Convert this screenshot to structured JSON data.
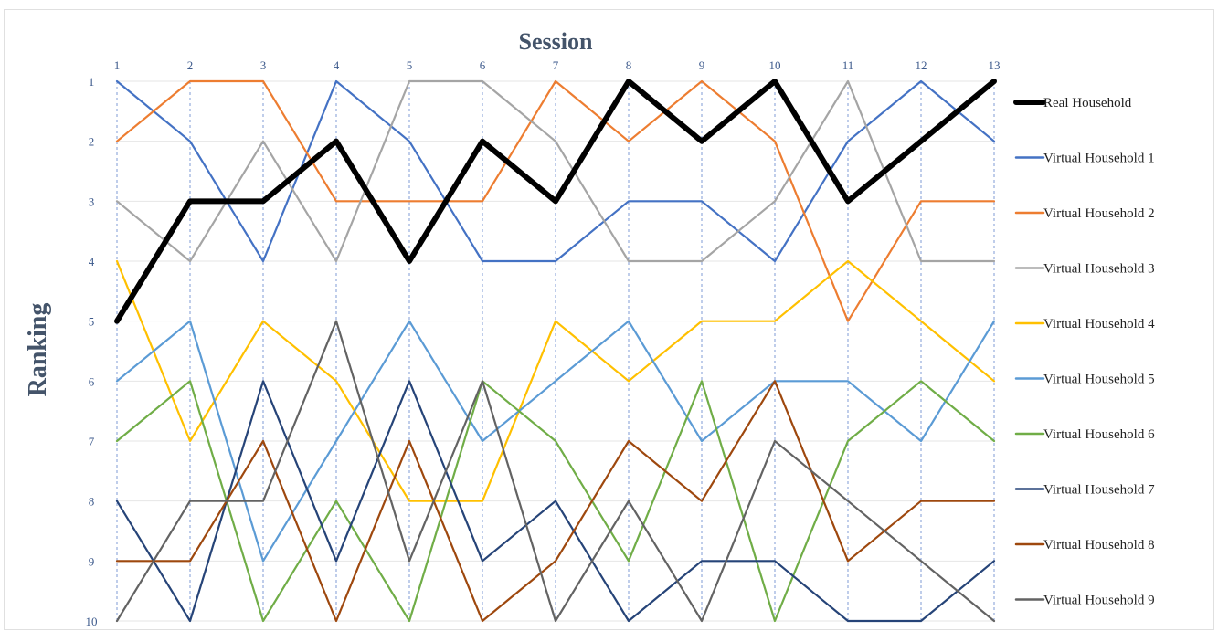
{
  "chart_data": {
    "type": "line",
    "xlabel": "Session",
    "ylabel": "Ranking",
    "x": [
      1,
      2,
      3,
      4,
      5,
      6,
      7,
      8,
      9,
      10,
      11,
      12,
      13
    ],
    "y_ticks": [
      1,
      2,
      3,
      4,
      5,
      6,
      7,
      8,
      9,
      10
    ],
    "ylim": [
      10,
      1
    ],
    "y_inverted": true,
    "xlim": [
      1,
      13
    ],
    "grid": "horizontal solid, vertical dashed",
    "legend_position": "right",
    "series": [
      {
        "name": "Real Household",
        "color": "#000000",
        "values": [
          5,
          3,
          3,
          2,
          4,
          2,
          3,
          1,
          2,
          1,
          3,
          2,
          1
        ]
      },
      {
        "name": "Virtual Household 1",
        "color": "#4472c4",
        "values": [
          1,
          2,
          4,
          1,
          2,
          4,
          4,
          3,
          3,
          4,
          2,
          1,
          2
        ]
      },
      {
        "name": "Virtual Household 2",
        "color": "#ed7d31",
        "values": [
          2,
          1,
          1,
          3,
          3,
          3,
          1,
          2,
          1,
          2,
          5,
          3,
          3
        ]
      },
      {
        "name": "Virtual Household 3",
        "color": "#a5a5a5",
        "values": [
          3,
          4,
          2,
          4,
          1,
          1,
          2,
          4,
          4,
          3,
          1,
          4,
          4
        ]
      },
      {
        "name": "Virtual Household 4",
        "color": "#ffc000",
        "values": [
          4,
          7,
          5,
          6,
          8,
          8,
          5,
          6,
          5,
          5,
          4,
          5,
          6
        ]
      },
      {
        "name": "Virtual Household 5",
        "color": "#5b9bd5",
        "values": [
          6,
          5,
          9,
          7,
          5,
          7,
          6,
          5,
          7,
          6,
          6,
          7,
          5
        ]
      },
      {
        "name": "Virtual Household 6",
        "color": "#70ad47",
        "values": [
          7,
          6,
          10,
          8,
          10,
          6,
          7,
          9,
          6,
          10,
          7,
          6,
          7
        ]
      },
      {
        "name": "Virtual Household 7",
        "color": "#264478",
        "values": [
          8,
          10,
          6,
          9,
          6,
          9,
          8,
          10,
          9,
          9,
          10,
          10,
          9
        ]
      },
      {
        "name": "Virtual Household 8",
        "color": "#9e480e",
        "values": [
          9,
          9,
          7,
          10,
          7,
          10,
          9,
          7,
          8,
          6,
          9,
          8,
          8
        ]
      },
      {
        "name": "Virtual Household 9",
        "color": "#636363",
        "values": [
          10,
          8,
          8,
          5,
          9,
          6,
          10,
          8,
          10,
          7,
          8,
          9,
          10
        ]
      }
    ]
  }
}
